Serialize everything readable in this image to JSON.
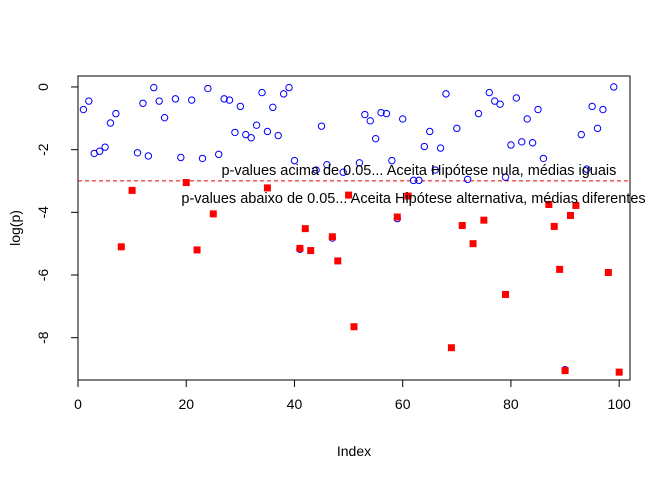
{
  "chart_data": {
    "type": "scatter",
    "title": "",
    "xlabel": "Index",
    "ylabel": "log(p)",
    "xlim": [
      0,
      102
    ],
    "ylim": [
      -9.35,
      0.35
    ],
    "x_ticks": [
      0,
      20,
      40,
      60,
      80,
      100
    ],
    "y_ticks": [
      0,
      -2,
      -4,
      -6,
      -8
    ],
    "grid": false,
    "threshold": {
      "value": -2.9957,
      "color": "#e00000",
      "style": "dashed"
    },
    "annotations": [
      {
        "text": "p-values acima de 0.05... Aceita Hipótese nula, médias iguais",
        "x": 63,
        "y": -2.65
      },
      {
        "text": "p-values abaixo de 0.05... Aceita Hipótese alternativa, médias diferentes",
        "x": 62,
        "y": -3.55
      }
    ],
    "series": [
      {
        "marker": "open-circle",
        "color": "#0000ff",
        "points": [
          [
            1,
            -0.72
          ],
          [
            2,
            -0.45
          ],
          [
            3,
            -2.12
          ],
          [
            4,
            -2.05
          ],
          [
            5,
            -1.92
          ],
          [
            6,
            -1.15
          ],
          [
            7,
            -0.85
          ],
          [
            11,
            -2.1
          ],
          [
            12,
            -0.52
          ],
          [
            13,
            -2.2
          ],
          [
            14,
            -0.02
          ],
          [
            15,
            -0.45
          ],
          [
            16,
            -0.98
          ],
          [
            18,
            -0.38
          ],
          [
            19,
            -2.25
          ],
          [
            21,
            -0.42
          ],
          [
            23,
            -2.28
          ],
          [
            24,
            -0.05
          ],
          [
            26,
            -2.15
          ],
          [
            27,
            -0.38
          ],
          [
            28,
            -0.42
          ],
          [
            29,
            -1.45
          ],
          [
            30,
            -0.62
          ],
          [
            31,
            -1.52
          ],
          [
            32,
            -1.62
          ],
          [
            33,
            -1.22
          ],
          [
            34,
            -0.18
          ],
          [
            35,
            -1.42
          ],
          [
            36,
            -0.65
          ],
          [
            37,
            -1.55
          ],
          [
            38,
            -0.22
          ],
          [
            39,
            -0.02
          ],
          [
            40,
            -2.35
          ],
          [
            41,
            -5.18
          ],
          [
            44,
            -2.65
          ],
          [
            45,
            -1.25
          ],
          [
            46,
            -2.48
          ],
          [
            47,
            -4.82
          ],
          [
            49,
            -2.72
          ],
          [
            52,
            -2.42
          ],
          [
            53,
            -0.88
          ],
          [
            54,
            -1.08
          ],
          [
            55,
            -1.65
          ],
          [
            56,
            -0.82
          ],
          [
            57,
            -0.85
          ],
          [
            58,
            -2.35
          ],
          [
            59,
            -4.2
          ],
          [
            60,
            -1.02
          ],
          [
            62,
            -2.98
          ],
          [
            63,
            -2.98
          ],
          [
            64,
            -1.9
          ],
          [
            65,
            -1.42
          ],
          [
            66,
            -2.65
          ],
          [
            67,
            -1.95
          ],
          [
            68,
            -0.22
          ],
          [
            70,
            -1.32
          ],
          [
            72,
            -2.95
          ],
          [
            74,
            -0.85
          ],
          [
            76,
            -0.18
          ],
          [
            77,
            -0.45
          ],
          [
            78,
            -0.55
          ],
          [
            79,
            -2.88
          ],
          [
            80,
            -1.85
          ],
          [
            81,
            -0.35
          ],
          [
            82,
            -1.75
          ],
          [
            83,
            -1.02
          ],
          [
            84,
            -1.78
          ],
          [
            85,
            -0.72
          ],
          [
            86,
            -2.28
          ],
          [
            90,
            -9.02
          ],
          [
            93,
            -1.52
          ],
          [
            94,
            -2.62
          ],
          [
            95,
            -0.62
          ],
          [
            96,
            -1.32
          ],
          [
            97,
            -0.72
          ],
          [
            99,
            0.0
          ]
        ]
      },
      {
        "marker": "filled-square",
        "color": "#ff0000",
        "points": [
          [
            8,
            -5.1
          ],
          [
            10,
            -3.3
          ],
          [
            20,
            -3.05
          ],
          [
            22,
            -5.2
          ],
          [
            25,
            -4.05
          ],
          [
            35,
            -3.22
          ],
          [
            41,
            -5.15
          ],
          [
            42,
            -4.52
          ],
          [
            43,
            -5.22
          ],
          [
            47,
            -4.78
          ],
          [
            48,
            -5.55
          ],
          [
            50,
            -3.45
          ],
          [
            51,
            -7.65
          ],
          [
            59,
            -4.15
          ],
          [
            61,
            -3.48
          ],
          [
            69,
            -8.32
          ],
          [
            71,
            -4.42
          ],
          [
            73,
            -5.0
          ],
          [
            75,
            -4.25
          ],
          [
            79,
            -6.62
          ],
          [
            87,
            -3.75
          ],
          [
            88,
            -4.45
          ],
          [
            89,
            -5.82
          ],
          [
            90,
            -9.05
          ],
          [
            91,
            -4.1
          ],
          [
            92,
            -3.78
          ],
          [
            98,
            -5.92
          ],
          [
            100,
            -9.1
          ]
        ]
      }
    ]
  }
}
